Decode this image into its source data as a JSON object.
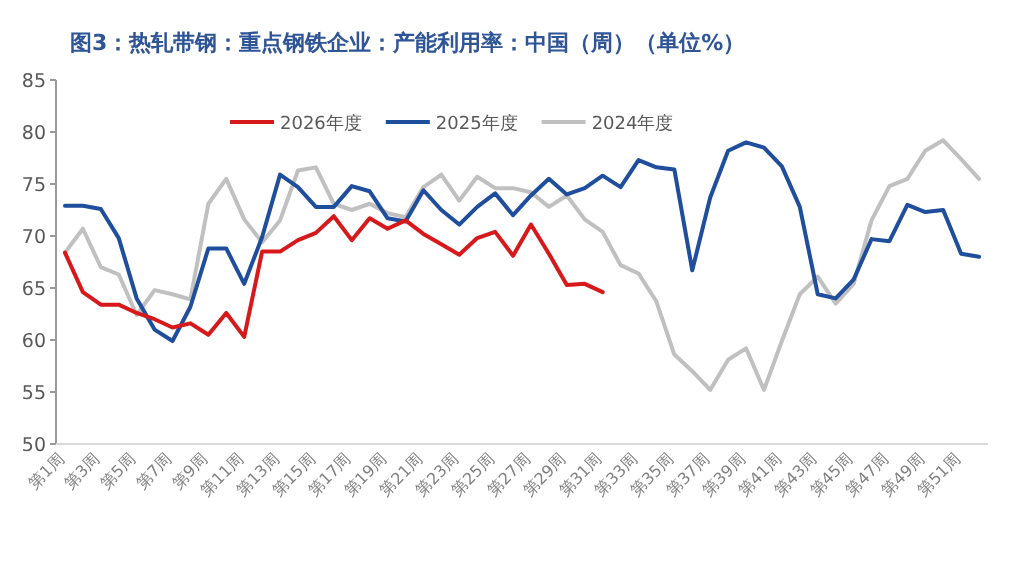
{
  "chart_data": {
    "type": "line",
    "title": "图3：热轧带钢：重点钢铁企业：产能利用率：中国（周）（单位%）",
    "categories": [
      "第1周",
      null,
      "第3周",
      null,
      "第5周",
      null,
      "第7周",
      null,
      "第9周",
      null,
      "第11周",
      null,
      "第13周",
      null,
      "第15周",
      null,
      "第17周",
      null,
      "第19周",
      null,
      "第21周",
      null,
      "第23周",
      null,
      "第25周",
      null,
      "第27周",
      null,
      "第29周",
      null,
      "第31周",
      null,
      "第33周",
      null,
      "第35周",
      null,
      "第37周",
      null,
      "第39周",
      null,
      "第41周",
      null,
      "第43周",
      null,
      "第45周",
      null,
      "第47周",
      null,
      "第49周",
      null,
      "第51周",
      null
    ],
    "ylim": [
      50,
      85
    ],
    "yticks": [
      50,
      55,
      60,
      65,
      70,
      75,
      80,
      85
    ],
    "legend": "top",
    "grid": false,
    "marker": "none",
    "line_style": "solid",
    "series": [
      {
        "name": "2026年度",
        "color": "#d7191c",
        "values": [
          68.4,
          64.6,
          63.4,
          63.4,
          62.6,
          62.0,
          61.2,
          61.6,
          60.5,
          62.6,
          60.3,
          68.5,
          68.5,
          69.6,
          70.3,
          71.9,
          69.6,
          71.7,
          70.7,
          71.5,
          70.2,
          69.2,
          68.2,
          69.8,
          70.4,
          68.1,
          71.1,
          68.3,
          65.3,
          65.4,
          64.6,
          null,
          null,
          null,
          null,
          null,
          null,
          null,
          null,
          null,
          null,
          null,
          null,
          null,
          null,
          null,
          null,
          null,
          null,
          null,
          null,
          null
        ]
      },
      {
        "name": "2025年度",
        "color": "#1f4e9c",
        "values": [
          72.9,
          72.9,
          72.6,
          69.8,
          64.0,
          61.0,
          59.9,
          63.2,
          68.8,
          68.8,
          65.4,
          69.9,
          75.9,
          74.7,
          72.8,
          72.8,
          74.8,
          74.3,
          71.7,
          71.4,
          74.4,
          72.5,
          71.1,
          72.8,
          74.1,
          72.0,
          73.9,
          75.5,
          74.0,
          74.6,
          75.8,
          74.7,
          77.3,
          76.6,
          76.4,
          66.7,
          73.7,
          78.2,
          79.0,
          78.5,
          76.7,
          72.8,
          64.4,
          64.0,
          65.8,
          69.7,
          69.5,
          73.0,
          72.3,
          72.5,
          68.3,
          68.0
        ]
      },
      {
        "name": "2024年度",
        "color": "#c0c0c0",
        "values": [
          68.4,
          70.7,
          67.0,
          66.3,
          62.4,
          64.8,
          64.4,
          63.9,
          73.1,
          75.5,
          71.6,
          69.4,
          71.5,
          76.3,
          76.6,
          73.1,
          72.5,
          73.1,
          72.2,
          71.8,
          74.7,
          75.9,
          73.4,
          75.7,
          74.6,
          74.6,
          74.2,
          72.8,
          73.9,
          71.6,
          70.4,
          67.2,
          66.4,
          63.7,
          58.6,
          57.0,
          55.2,
          58.1,
          59.2,
          55.2,
          59.9,
          64.4,
          66.1,
          63.5,
          65.4,
          71.5,
          74.8,
          75.5,
          78.2,
          79.2,
          77.4,
          75.5
        ]
      }
    ]
  }
}
